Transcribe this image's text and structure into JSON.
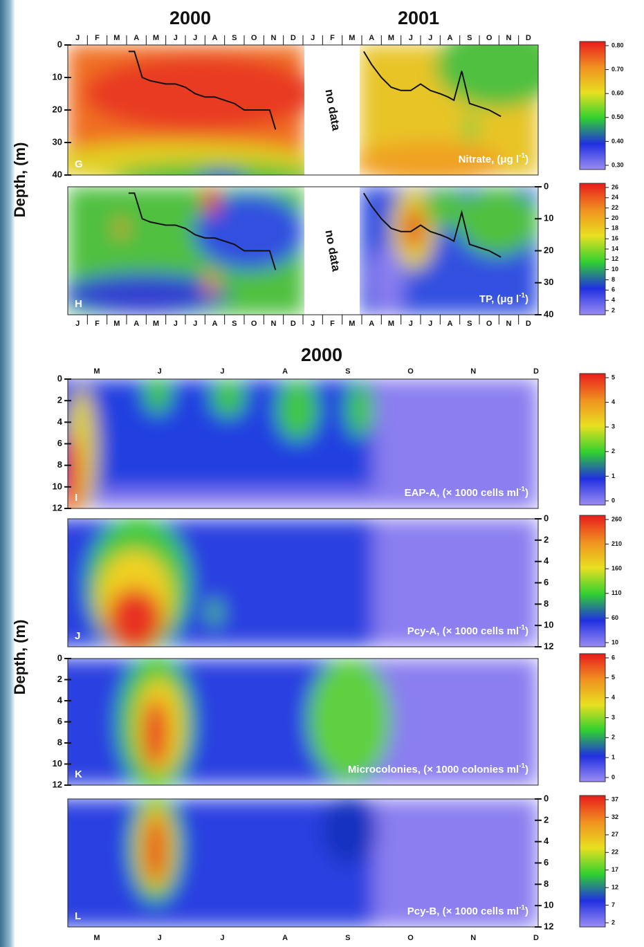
{
  "chart_data": [
    {
      "type": "heatmap",
      "panel": "G",
      "titles": [
        "2000",
        "2001"
      ],
      "ylabel": "Depth, (m)",
      "categories": [
        "J",
        "F",
        "M",
        "A",
        "M",
        "J",
        "J",
        "A",
        "S",
        "O",
        "N",
        "D",
        "J",
        "F",
        "M",
        "A",
        "M",
        "J",
        "J",
        "A",
        "S",
        "O",
        "N",
        "D"
      ],
      "annotation": "no data",
      "label_parts": [
        "Nitrate, (μg l",
        "-1",
        ")"
      ],
      "ylim": [
        0,
        40
      ],
      "yticks": [
        0,
        10,
        20,
        30,
        40
      ],
      "xlim": [
        0,
        24
      ],
      "x": [
        3.1,
        3.4,
        3.8,
        4.2,
        5,
        5.5,
        6,
        6.5,
        7,
        7.5,
        8,
        8.5,
        9,
        9.5,
        10.3,
        10.6,
        null,
        15.1,
        15.5,
        16,
        16.5,
        17,
        17.5,
        18,
        18.5,
        19,
        19.4,
        19.7,
        20.1,
        20.5,
        21,
        21.5,
        22.1
      ],
      "values": [
        2,
        2,
        10,
        11,
        12,
        12,
        13,
        15,
        16,
        16,
        17,
        18,
        20,
        20,
        20,
        26,
        null,
        2,
        6,
        10,
        13,
        14,
        14,
        12,
        14,
        15,
        16,
        17,
        8,
        18,
        19,
        20,
        22
      ],
      "colorbar_ticks": [
        {
          "value": 0.8,
          "label": "0.80"
        },
        {
          "value": 0.7,
          "label": "0.70"
        },
        {
          "value": 0.6,
          "label": "0.60"
        },
        {
          "value": 0.5,
          "label": "0.50"
        },
        {
          "value": 0.4,
          "label": "0.40"
        },
        {
          "value": 0.3,
          "label": "0.30"
        }
      ]
    },
    {
      "type": "heatmap",
      "panel": "H",
      "categories": [
        "J",
        "F",
        "M",
        "A",
        "M",
        "J",
        "J",
        "A",
        "S",
        "O",
        "N",
        "D",
        "J",
        "F",
        "M",
        "A",
        "M",
        "J",
        "J",
        "A",
        "S",
        "O",
        "N",
        "D"
      ],
      "annotation": "no data",
      "label_parts": [
        "TP, (μg l",
        "-1",
        ")"
      ],
      "ylim": [
        0,
        40
      ],
      "yticks": [
        0,
        10,
        20,
        30,
        40
      ],
      "xlim": [
        0,
        24
      ],
      "x": [
        3.1,
        3.4,
        3.8,
        4.2,
        5,
        5.5,
        6,
        6.5,
        7,
        7.5,
        8,
        8.5,
        9,
        9.5,
        10.3,
        10.6,
        null,
        15.1,
        15.5,
        16,
        16.5,
        17,
        17.5,
        18,
        18.5,
        19,
        19.4,
        19.7,
        20.1,
        20.5,
        21,
        21.5,
        22.1
      ],
      "values": [
        2,
        2,
        10,
        11,
        12,
        12,
        13,
        15,
        16,
        16,
        17,
        18,
        20,
        20,
        20,
        26,
        null,
        2,
        6,
        10,
        13,
        14,
        14,
        12,
        14,
        15,
        16,
        17,
        8,
        18,
        19,
        20,
        22
      ],
      "colorbar_ticks": [
        26,
        24,
        22,
        20,
        18,
        16,
        14,
        12,
        10,
        8,
        6,
        4,
        2
      ]
    },
    {
      "type": "heatmap",
      "panel": "I",
      "titles": [
        "2000"
      ],
      "ylabel": "Depth, (m)",
      "categories": [
        "M",
        "J",
        "J",
        "A",
        "S",
        "O",
        "N",
        "D"
      ],
      "label_parts": [
        "EAP-A, (× 1000 cells ml",
        "-1",
        ")"
      ],
      "ylim": [
        0,
        12
      ],
      "yticks": [
        0,
        2,
        4,
        6,
        8,
        10,
        12
      ],
      "colorbar_ticks": [
        5,
        4,
        3,
        2,
        1,
        0
      ]
    },
    {
      "type": "heatmap",
      "panel": "J",
      "label_parts": [
        "Pcy-A, (× 1000 cells ml",
        "-1",
        ")"
      ],
      "ylim": [
        0,
        12
      ],
      "yticks": [
        0,
        2,
        4,
        6,
        8,
        10,
        12
      ],
      "colorbar_ticks": [
        260,
        210,
        160,
        110,
        60,
        10
      ]
    },
    {
      "type": "heatmap",
      "panel": "K",
      "label_parts": [
        "Microcolonies, (× 1000 colonies ml",
        "-1",
        ")"
      ],
      "ylim": [
        0,
        12
      ],
      "yticks": [
        0,
        2,
        4,
        6,
        8,
        10,
        12
      ],
      "colorbar_ticks": [
        6,
        5,
        4,
        3,
        2,
        1,
        0
      ]
    },
    {
      "type": "heatmap",
      "panel": "L",
      "label_parts": [
        "Pcy-B, (× 1000 cells ml",
        "-1",
        ")"
      ],
      "categories": [
        "M",
        "J",
        "J",
        "A",
        "S",
        "O",
        "N",
        "D"
      ],
      "ylim": [
        0,
        12
      ],
      "yticks": [
        0,
        2,
        4,
        6,
        8,
        10,
        12
      ],
      "colorbar_ticks": [
        37,
        32,
        27,
        22,
        17,
        12,
        7,
        2
      ]
    }
  ]
}
